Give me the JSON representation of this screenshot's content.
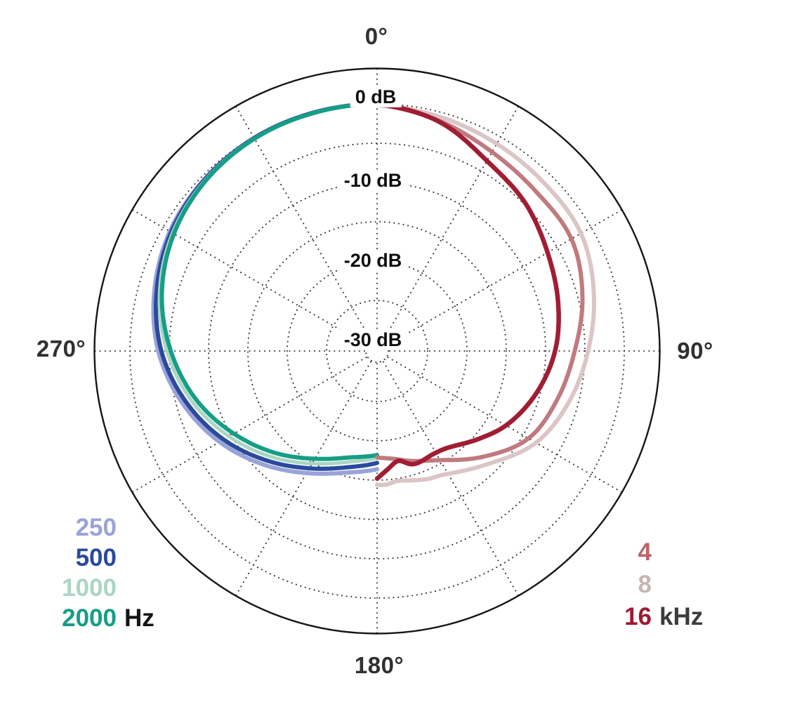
{
  "chart_data": {
    "type": "polar-line",
    "description": "Microphone directional polar pattern; left half shows low/mid frequencies, right half shows high frequencies. Radius is level in dB relative to on-axis (0 dB), angle is degrees off axis.",
    "angular_axis": {
      "direction": "clockwise-from-top",
      "spoke_step_deg": 30,
      "labels": [
        {
          "text": "0°",
          "deg": 0
        },
        {
          "text": "90°",
          "deg": 90
        },
        {
          "text": "180°",
          "deg": 180
        },
        {
          "text": "270°",
          "deg": 270
        }
      ]
    },
    "radial_axis": {
      "unit": "dB",
      "max_db": 0,
      "min_db": -30,
      "ring_step_db": 5,
      "ring_dbs": [
        0,
        -5,
        -10,
        -15,
        -20,
        -25,
        -30
      ],
      "ring_labels": [
        {
          "text": "0 dB",
          "db": 0
        },
        {
          "text": "-10 dB",
          "db": -10
        },
        {
          "text": "-20 dB",
          "db": -20
        },
        {
          "text": "-30 dB",
          "db": -30
        }
      ]
    },
    "series": [
      {
        "name": "250 Hz",
        "legend_label": "250",
        "color": "#9aa3d8",
        "half": "left",
        "width": 6,
        "points_deg_db": [
          [
            0,
            0
          ],
          [
            15,
            -0.05
          ],
          [
            30,
            -0.15
          ],
          [
            45,
            -0.45
          ],
          [
            60,
            -1.0
          ],
          [
            75,
            -2.1
          ],
          [
            90,
            -3.6
          ],
          [
            105,
            -5.8
          ],
          [
            120,
            -8.3
          ],
          [
            135,
            -11.0
          ],
          [
            150,
            -13.5
          ],
          [
            165,
            -15.4
          ],
          [
            180,
            -16.4
          ]
        ]
      },
      {
        "name": "500 Hz",
        "legend_label": "500",
        "color": "#2a4a9d",
        "half": "left",
        "width": 6,
        "points_deg_db": [
          [
            0,
            0
          ],
          [
            15,
            -0.05
          ],
          [
            30,
            -0.15
          ],
          [
            45,
            -0.5
          ],
          [
            60,
            -1.2
          ],
          [
            75,
            -2.4
          ],
          [
            90,
            -4.0
          ],
          [
            105,
            -6.3
          ],
          [
            120,
            -8.9
          ],
          [
            135,
            -11.7
          ],
          [
            150,
            -14.2
          ],
          [
            165,
            -16.1
          ],
          [
            180,
            -17.2
          ]
        ]
      },
      {
        "name": "1000 Hz",
        "legend_label": "1000",
        "color": "#abd6c3",
        "half": "left",
        "width": 5,
        "points_deg_db": [
          [
            0,
            0
          ],
          [
            15,
            -0.1
          ],
          [
            30,
            -0.2
          ],
          [
            45,
            -0.6
          ],
          [
            60,
            -1.4
          ],
          [
            75,
            -2.8
          ],
          [
            90,
            -4.7
          ],
          [
            105,
            -7.0
          ],
          [
            120,
            -9.7
          ],
          [
            135,
            -12.4
          ],
          [
            150,
            -14.9
          ],
          [
            165,
            -16.8
          ],
          [
            180,
            -17.8
          ]
        ]
      },
      {
        "name": "2000 Hz",
        "legend_label": "2000",
        "color": "#169e86",
        "half": "left",
        "width": 6,
        "points_deg_db": [
          [
            0,
            0
          ],
          [
            15,
            -0.1
          ],
          [
            30,
            -0.25
          ],
          [
            45,
            -0.7
          ],
          [
            60,
            -1.6
          ],
          [
            75,
            -3.1
          ],
          [
            90,
            -5.2
          ],
          [
            105,
            -7.6
          ],
          [
            120,
            -10.4
          ],
          [
            135,
            -13.1
          ],
          [
            150,
            -15.6
          ],
          [
            165,
            -17.4
          ],
          [
            180,
            -18.2
          ]
        ]
      },
      {
        "name": "8 kHz",
        "legend_label": "8",
        "color": "#dcc5c6",
        "half": "right",
        "width": 6,
        "points_deg_db": [
          [
            0,
            -0.2
          ],
          [
            15,
            -0.6
          ],
          [
            30,
            -1.0
          ],
          [
            45,
            -1.3
          ],
          [
            60,
            -1.5
          ],
          [
            75,
            -2.9
          ],
          [
            90,
            -4.6
          ],
          [
            105,
            -6.2
          ],
          [
            120,
            -8.1
          ],
          [
            135,
            -11.2
          ],
          [
            150,
            -13.4
          ],
          [
            158,
            -13.9
          ],
          [
            165,
            -14.4
          ],
          [
            171,
            -14.7
          ],
          [
            176,
            -14.4
          ],
          [
            180,
            -14.4
          ]
        ]
      },
      {
        "name": "4 kHz",
        "legend_label": "4",
        "color": "#c07a7e",
        "half": "right",
        "width": 6,
        "points_deg_db": [
          [
            0,
            -0.1
          ],
          [
            15,
            -1.1
          ],
          [
            30,
            -2.2
          ],
          [
            45,
            -2.8
          ],
          [
            60,
            -2.9
          ],
          [
            75,
            -4.4
          ],
          [
            90,
            -6.3
          ],
          [
            105,
            -7.7
          ],
          [
            120,
            -9.2
          ],
          [
            135,
            -12.4
          ],
          [
            150,
            -15.4
          ],
          [
            165,
            -17.0
          ],
          [
            172,
            -17.6
          ],
          [
            180,
            -17.9
          ]
        ]
      },
      {
        "name": "16 kHz",
        "legend_label": "16",
        "color": "#a01d33",
        "half": "right",
        "width": 6.5,
        "points_deg_db": [
          [
            0,
            0
          ],
          [
            15,
            -1.2
          ],
          [
            30,
            -3.5
          ],
          [
            45,
            -4.8
          ],
          [
            60,
            -6.4
          ],
          [
            75,
            -7.6
          ],
          [
            90,
            -8.8
          ],
          [
            105,
            -10.5
          ],
          [
            120,
            -12.5
          ],
          [
            130,
            -14.2
          ],
          [
            142,
            -16.0
          ],
          [
            151,
            -16.5
          ],
          [
            162,
            -16.3
          ],
          [
            169,
            -17.2
          ],
          [
            175,
            -16.3
          ],
          [
            180,
            -15.2
          ]
        ]
      }
    ],
    "legend_position": "bottom corners"
  },
  "legend_left": {
    "unit": "Hz",
    "items": [
      {
        "label": "250",
        "color": "#9aa3d8"
      },
      {
        "label": "500",
        "color": "#2a4a9d"
      },
      {
        "label": "1000",
        "color": "#abd6c3"
      },
      {
        "label": "2000",
        "color": "#169e86"
      }
    ]
  },
  "legend_right": {
    "unit": "kHz",
    "items": [
      {
        "label": "4",
        "color": "#bb6468"
      },
      {
        "label": "8",
        "color": "#c8b4b5"
      },
      {
        "label": "16",
        "color": "#9e1b32"
      }
    ]
  }
}
